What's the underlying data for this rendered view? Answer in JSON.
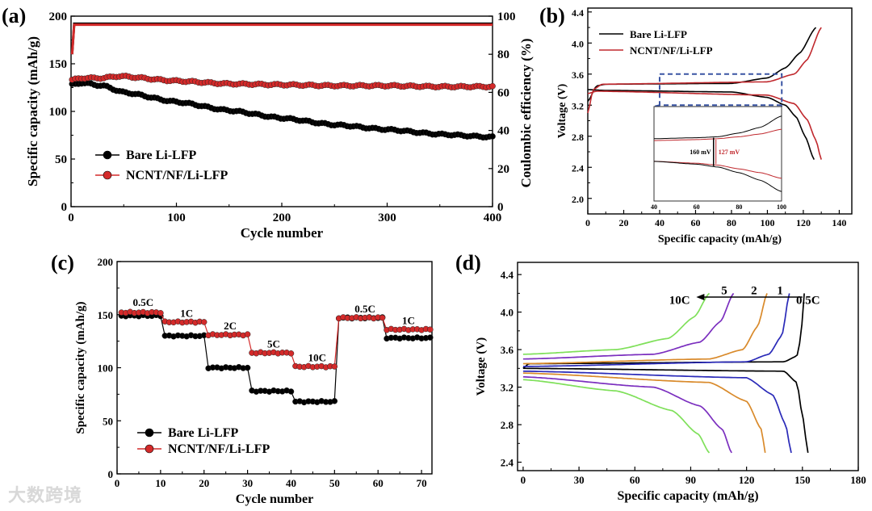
{
  "watermark": "大数跨境",
  "chart_data": [
    {
      "panel": "(a)",
      "type": "scatter",
      "xlabel": "Cycle number",
      "ylabel": "Specific capacity (mAh/g)",
      "y2label": "Coulombic efficiency (%)",
      "xlim": [
        0,
        400
      ],
      "ylim": [
        0,
        200
      ],
      "y2lim": [
        0,
        100
      ],
      "xticks": [
        0,
        100,
        200,
        300,
        400
      ],
      "yticks": [
        0,
        50,
        100,
        150,
        200
      ],
      "y2ticks": [
        0,
        20,
        40,
        60,
        80,
        100
      ],
      "legend": {
        "position": "bottom-left",
        "entries": [
          "Bare Li-LFP",
          "NCNT/NF/Li-LFP"
        ]
      },
      "series": [
        {
          "name": "Bare Li-LFP",
          "color": "#000000",
          "axis": "left",
          "marker": true,
          "points": [
            [
              1,
              128
            ],
            [
              10,
              130
            ],
            [
              30,
              127
            ],
            [
              50,
              120
            ],
            [
              100,
              110
            ],
            [
              150,
              101
            ],
            [
              200,
              93
            ],
            [
              250,
              86
            ],
            [
              300,
              81
            ],
            [
              350,
              76
            ],
            [
              400,
              73
            ]
          ]
        },
        {
          "name": "NCNT/NF/Li-LFP",
          "color": "#d42a2a",
          "axis": "left",
          "marker": true,
          "points": [
            [
              1,
              133
            ],
            [
              10,
              135
            ],
            [
              30,
              135
            ],
            [
              45,
              137
            ],
            [
              100,
              132
            ],
            [
              150,
              129
            ],
            [
              200,
              128
            ],
            [
              250,
              127
            ],
            [
              300,
              127
            ],
            [
              350,
              126
            ],
            [
              400,
              126
            ]
          ]
        },
        {
          "name": "Bare Li-LFP CE",
          "color": "#000000",
          "axis": "right",
          "marker": false,
          "points": [
            [
              1,
              80
            ],
            [
              3,
              96
            ],
            [
              400,
              96
            ]
          ]
        },
        {
          "name": "NCNT/NF/Li-LFP CE",
          "color": "#d42a2a",
          "axis": "right",
          "marker": false,
          "points": [
            [
              1,
              80
            ],
            [
              3,
              95.5
            ],
            [
              400,
              95.5
            ]
          ]
        }
      ]
    },
    {
      "panel": "(b)",
      "type": "line",
      "xlabel": "Specific capacity (mAh/g)",
      "ylabel": "Voltage (V)",
      "xlim": [
        0,
        147
      ],
      "ylim": [
        1.8,
        4.45
      ],
      "xticks": [
        0,
        20,
        40,
        60,
        80,
        100,
        120,
        140
      ],
      "yticks": [
        2.0,
        2.4,
        2.8,
        3.2,
        3.6,
        4.0,
        4.4
      ],
      "legend": {
        "position": "top-left",
        "entries": [
          "Bare Li-LFP",
          "NCNT/NF/Li-LFP"
        ]
      },
      "series": [
        {
          "name": "Bare Li-LFP",
          "color": "#000000",
          "points": [
            [
              0,
              3.25
            ],
            [
              5,
              3.45
            ],
            [
              10,
              3.47
            ],
            [
              80,
              3.48
            ],
            [
              100,
              3.55
            ],
            [
              110,
              3.68
            ],
            [
              118,
              3.87
            ],
            [
              127,
              4.2
            ]
          ]
        },
        {
          "name": "Bare Li-LFP discharge",
          "color": "#000000",
          "points": [
            [
              0,
              3.4
            ],
            [
              10,
              3.39
            ],
            [
              80,
              3.37
            ],
            [
              100,
              3.3
            ],
            [
              110,
              3.2
            ],
            [
              116,
              3.05
            ],
            [
              121,
              2.8
            ],
            [
              126,
              2.5
            ]
          ]
        },
        {
          "name": "NCNT/NF/Li-LFP",
          "color": "#c0282d",
          "points": [
            [
              0,
              3.1
            ],
            [
              3,
              3.4
            ],
            [
              8,
              3.47
            ],
            [
              100,
              3.5
            ],
            [
              115,
              3.6
            ],
            [
              122,
              3.78
            ],
            [
              130,
              4.2
            ]
          ]
        },
        {
          "name": "NCNT/NF/Li-LFP discharge",
          "color": "#c0282d",
          "points": [
            [
              0,
              3.35
            ],
            [
              5,
              3.38
            ],
            [
              100,
              3.33
            ],
            [
              115,
              3.22
            ],
            [
              122,
              3.02
            ],
            [
              127,
              2.75
            ],
            [
              130,
              2.5
            ]
          ]
        }
      ],
      "zoom_box": {
        "xlim": [
          40,
          108
        ],
        "ylim": [
          3.2,
          3.6
        ],
        "color": "#3a55a4"
      },
      "inset": {
        "xlim": [
          40,
          100
        ],
        "ylim": [
          3.15,
          3.65
        ],
        "xticks": [
          40,
          60,
          80,
          100
        ],
        "annotations": [
          "160 mV",
          "127 mV"
        ],
        "annotation_x": 68,
        "series": [
          {
            "color": "#000000",
            "points": [
              [
                40,
                3.48
              ],
              [
                60,
                3.485
              ],
              [
                70,
                3.49
              ],
              [
                80,
                3.51
              ],
              [
                90,
                3.54
              ],
              [
                100,
                3.6
              ]
            ]
          },
          {
            "color": "#c0282d",
            "points": [
              [
                40,
                3.47
              ],
              [
                60,
                3.475
              ],
              [
                70,
                3.48
              ],
              [
                80,
                3.49
              ],
              [
                90,
                3.505
              ],
              [
                100,
                3.53
              ]
            ]
          },
          {
            "color": "#c0282d",
            "points": [
              [
                40,
                3.36
              ],
              [
                60,
                3.35
              ],
              [
                70,
                3.34
              ],
              [
                80,
                3.32
              ],
              [
                90,
                3.3
              ],
              [
                100,
                3.27
              ]
            ]
          },
          {
            "color": "#000000",
            "points": [
              [
                40,
                3.36
              ],
              [
                60,
                3.345
              ],
              [
                70,
                3.33
              ],
              [
                80,
                3.3
              ],
              [
                90,
                3.26
              ],
              [
                100,
                3.2
              ]
            ]
          }
        ]
      }
    },
    {
      "panel": "(c)",
      "type": "scatter",
      "xlabel": "Cycle number",
      "ylabel": "Specific capacity (mAh/g)",
      "xlim": [
        0,
        72.4
      ],
      "ylim": [
        0,
        200
      ],
      "xticks": [
        0,
        10,
        20,
        30,
        40,
        50,
        60,
        70
      ],
      "yticks": [
        0,
        50,
        100,
        150,
        200
      ],
      "legend": {
        "position": "bottom-left",
        "entries": [
          "Bare Li-LFP",
          "NCNT/NF/Li-LFP"
        ]
      },
      "rate_labels": [
        {
          "text": "0.5C",
          "x": 6,
          "y": 158
        },
        {
          "text": "1C",
          "x": 16,
          "y": 148
        },
        {
          "text": "2C",
          "x": 26,
          "y": 136
        },
        {
          "text": "5C",
          "x": 36,
          "y": 119
        },
        {
          "text": "10C",
          "x": 46,
          "y": 106
        },
        {
          "text": "0.5C",
          "x": 57,
          "y": 152
        },
        {
          "text": "1C",
          "x": 67,
          "y": 141
        }
      ],
      "segments": [
        [
          1,
          10
        ],
        [
          11,
          20
        ],
        [
          21,
          30
        ],
        [
          31,
          40
        ],
        [
          41,
          50
        ],
        [
          51,
          61
        ],
        [
          62,
          72
        ]
      ],
      "series": [
        {
          "name": "Bare Li-LFP",
          "color": "#000000",
          "values": [
            149,
            130,
            100,
            78,
            68,
            147,
            128
          ]
        },
        {
          "name": "NCNT/NF/Li-LFP",
          "color": "#d42a2a",
          "values": [
            152,
            143,
            131,
            114,
            101,
            147,
            136
          ]
        }
      ]
    },
    {
      "panel": "(d)",
      "type": "line",
      "xlabel": "Specific capacity (mAh/g)",
      "ylabel": "Voltage (V)",
      "xlim": [
        -3,
        180
      ],
      "ylim": [
        2.31,
        4.53
      ],
      "xticks": [
        0,
        30,
        60,
        90,
        120,
        150,
        180
      ],
      "yticks": [
        2.4,
        2.8,
        3.2,
        3.6,
        4.0,
        4.4
      ],
      "rate_labels": [
        {
          "text": "10C",
          "x": 84,
          "y": 4.14
        },
        {
          "text": "5",
          "x": 108,
          "y": 4.24
        },
        {
          "text": "2",
          "x": 124,
          "y": 4.24
        },
        {
          "text": "1",
          "x": 138,
          "y": 4.24
        },
        {
          "text": "0.5C",
          "x": 153,
          "y": 4.14
        }
      ],
      "arrow": {
        "from": [
          150,
          4.16
        ],
        "to": [
          93,
          4.16
        ]
      },
      "series": [
        {
          "name": "0.5C",
          "color": "#000000",
          "charge": [
            [
              0,
              3.4
            ],
            [
              3,
              3.45
            ],
            [
              140,
              3.47
            ],
            [
              147,
              3.53
            ],
            [
              149,
              3.7
            ],
            [
              151,
              4.2
            ]
          ],
          "discharge": [
            [
              0,
              3.4
            ],
            [
              140,
              3.37
            ],
            [
              147,
              3.25
            ],
            [
              150,
              2.9
            ],
            [
              153,
              2.5
            ]
          ]
        },
        {
          "name": "1",
          "color": "#2a2ab8",
          "charge": [
            [
              0,
              3.42
            ],
            [
              120,
              3.47
            ],
            [
              132,
              3.55
            ],
            [
              139,
              3.75
            ],
            [
              143,
              4.2
            ]
          ],
          "discharge": [
            [
              0,
              3.37
            ],
            [
              120,
              3.3
            ],
            [
              134,
              3.12
            ],
            [
              141,
              2.8
            ],
            [
              144,
              2.5
            ]
          ]
        },
        {
          "name": "2",
          "color": "#d98a2b",
          "charge": [
            [
              0,
              3.45
            ],
            [
              100,
              3.5
            ],
            [
              118,
              3.6
            ],
            [
              126,
              3.85
            ],
            [
              131,
              4.2
            ]
          ],
          "discharge": [
            [
              0,
              3.35
            ],
            [
              100,
              3.25
            ],
            [
              120,
              3.05
            ],
            [
              128,
              2.75
            ],
            [
              130,
              2.5
            ]
          ]
        },
        {
          "name": "5",
          "color": "#7b2fbf",
          "charge": [
            [
              0,
              3.5
            ],
            [
              70,
              3.55
            ],
            [
              95,
              3.68
            ],
            [
              106,
              3.9
            ],
            [
              113,
              4.2
            ]
          ],
          "discharge": [
            [
              0,
              3.31
            ],
            [
              70,
              3.2
            ],
            [
              95,
              3.0
            ],
            [
              107,
              2.75
            ],
            [
              112,
              2.5
            ]
          ]
        },
        {
          "name": "10C",
          "color": "#7fe05a",
          "charge": [
            [
              0,
              3.55
            ],
            [
              50,
              3.6
            ],
            [
              78,
              3.72
            ],
            [
              92,
              3.95
            ],
            [
              100,
              4.2
            ]
          ],
          "discharge": [
            [
              0,
              3.28
            ],
            [
              50,
              3.16
            ],
            [
              80,
              2.95
            ],
            [
              94,
              2.7
            ],
            [
              100,
              2.5
            ]
          ]
        }
      ]
    }
  ]
}
